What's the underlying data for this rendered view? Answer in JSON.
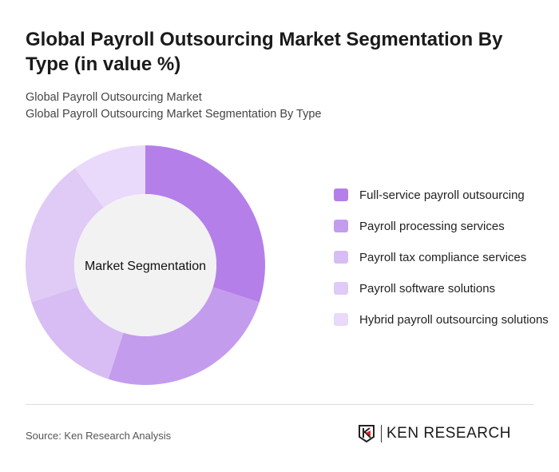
{
  "title": "Global Payroll Outsourcing Market Segmentation By Type (in value %)",
  "subtitle1": "Global Payroll Outsourcing Market",
  "subtitle2": "Global Payroll Outsourcing Market Segmentation By Type",
  "source": "Source: Ken Research Analysis",
  "logo_text": "KEN RESEARCH",
  "chart_data": {
    "type": "pie",
    "donut": true,
    "center_label": "Market Segmentation",
    "legend_position": "right",
    "categories": [
      "Full-service payroll outsourcing",
      "Payroll processing services",
      "Payroll tax compliance services",
      "Payroll software solutions",
      "Hybrid payroll outsourcing solutions"
    ],
    "values": [
      30,
      25,
      15,
      20,
      10
    ],
    "colors": [
      "#b57fea",
      "#c49cee",
      "#d7bdf4",
      "#e0caf6",
      "#e9d9fa"
    ]
  }
}
